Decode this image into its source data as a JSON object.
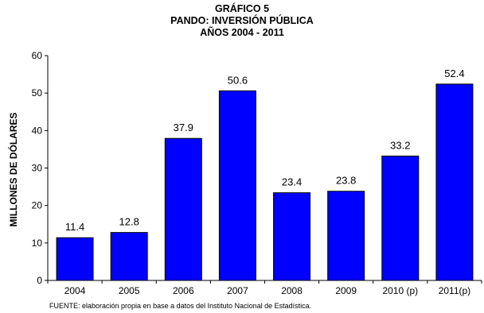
{
  "chart_data": {
    "type": "bar",
    "title_lines": [
      "GRÁFICO 5",
      "PANDO: INVERSIÓN PÚBLICA",
      "AÑOS 2004 - 2011"
    ],
    "ylabel": "MILLONES DE DÓLARES",
    "xlabel": "",
    "categories": [
      "2004",
      "2005",
      "2006",
      "2007",
      "2008",
      "2009",
      "2010 (p)",
      "2011(p)"
    ],
    "values": [
      11.4,
      12.8,
      37.9,
      50.6,
      23.4,
      23.8,
      33.2,
      52.4
    ],
    "data_labels": [
      "11.4",
      "12.8",
      "37.9",
      "50.6",
      "23.4",
      "23.8",
      "33.2",
      "52.4"
    ],
    "ylim": [
      0,
      60
    ],
    "yticks": [
      "0",
      "10",
      "20",
      "30",
      "40",
      "50",
      "60"
    ],
    "grid": false,
    "bar_color": "#0000ff",
    "bar_edge_color": "#000000"
  },
  "footer": "FUENTE: elaboración propia en base a datos del Instituto Nacional de Estadística."
}
